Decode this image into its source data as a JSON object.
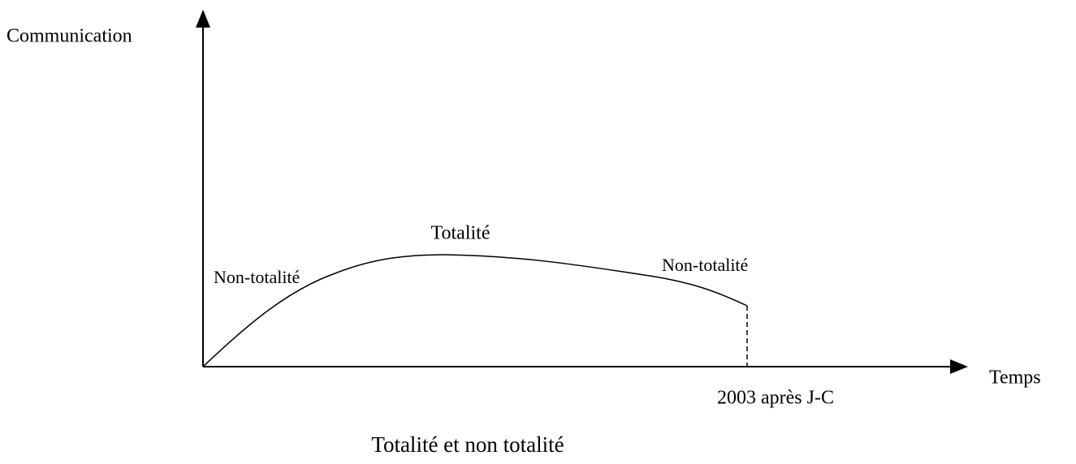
{
  "axes": {
    "y_label": "Communication",
    "x_label": "Temps",
    "x_marker": "2003 après J-C"
  },
  "annotations": [
    "Totalité",
    "Non-totalité",
    "Non-totalité"
  ],
  "caption": "Totalité et non totalité"
}
